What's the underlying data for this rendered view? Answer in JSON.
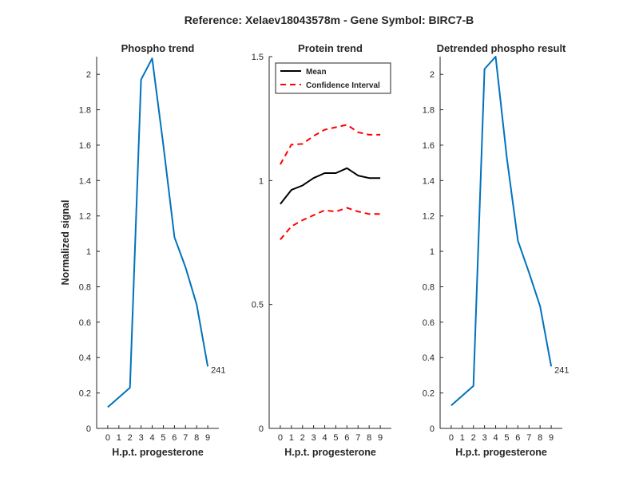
{
  "figure": {
    "suptitle": "Reference:  Xelaev18043578m - Gene Symbol:  BIRC7-B"
  },
  "chart_data": [
    {
      "type": "line",
      "title": "Phospho trend",
      "xlabel": "H.p.t. progesterone",
      "ylabel": "Normalized signal",
      "xlim": [
        -1,
        10
      ],
      "ylim": [
        0,
        2.1
      ],
      "xticks": [
        0,
        1,
        2,
        3,
        4,
        5,
        6,
        7,
        8,
        9
      ],
      "yticks": [
        0,
        0.2,
        0.4,
        0.6,
        0.8,
        1,
        1.2,
        1.4,
        1.6,
        1.8,
        2
      ],
      "series": [
        {
          "color": "#0072BD",
          "style": "solid",
          "x": [
            0,
            2,
            3,
            4,
            5,
            6,
            7,
            8,
            9
          ],
          "y": [
            0.12,
            0.23,
            1.97,
            2.09,
            1.6,
            1.08,
            0.91,
            0.7,
            0.35
          ]
        }
      ],
      "end_label": "241"
    },
    {
      "type": "line",
      "title": "Protein trend",
      "xlabel": "H.p.t. progesterone",
      "ylabel": "",
      "xlim": [
        -1,
        10
      ],
      "ylim": [
        0,
        1.5
      ],
      "xticks": [
        0,
        1,
        2,
        3,
        4,
        5,
        6,
        7,
        8,
        9
      ],
      "yticks": [
        0,
        0.5,
        1,
        1.5
      ],
      "legend_position": "top-left",
      "series": [
        {
          "name": "Mean",
          "color": "#000000",
          "style": "solid",
          "x": [
            0,
            1,
            2,
            3,
            4,
            5,
            6,
            7,
            8,
            9
          ],
          "y": [
            0.905,
            0.962,
            0.98,
            1.01,
            1.03,
            1.03,
            1.05,
            1.02,
            1.01,
            1.01
          ]
        },
        {
          "name": "Confidence Interval",
          "color": "#FF0000",
          "style": "dashed",
          "x": [
            0,
            1,
            2,
            3,
            4,
            5,
            6,
            7,
            8,
            9
          ],
          "y": [
            1.065,
            1.145,
            1.148,
            1.18,
            1.205,
            1.215,
            1.225,
            1.195,
            1.185,
            1.185
          ]
        },
        {
          "color": "#FF0000",
          "style": "dashed",
          "x": [
            0,
            1,
            2,
            3,
            4,
            5,
            6,
            7,
            8,
            9
          ],
          "y": [
            0.762,
            0.815,
            0.84,
            0.86,
            0.88,
            0.875,
            0.89,
            0.875,
            0.865,
            0.865
          ]
        }
      ]
    },
    {
      "type": "line",
      "title": "Detrended phospho result",
      "xlabel": "H.p.t. progesterone",
      "ylabel": "",
      "xlim": [
        -1,
        10
      ],
      "ylim": [
        0,
        2.1
      ],
      "xticks": [
        0,
        1,
        2,
        3,
        4,
        5,
        6,
        7,
        8,
        9
      ],
      "yticks": [
        0,
        0.2,
        0.4,
        0.6,
        0.8,
        1,
        1.2,
        1.4,
        1.6,
        1.8,
        2
      ],
      "series": [
        {
          "color": "#0072BD",
          "style": "solid",
          "x": [
            0,
            2,
            3,
            4,
            5,
            6,
            7,
            8,
            9
          ],
          "y": [
            0.13,
            0.24,
            2.03,
            2.1,
            1.53,
            1.06,
            0.88,
            0.69,
            0.35
          ]
        }
      ],
      "end_label": "241"
    }
  ]
}
